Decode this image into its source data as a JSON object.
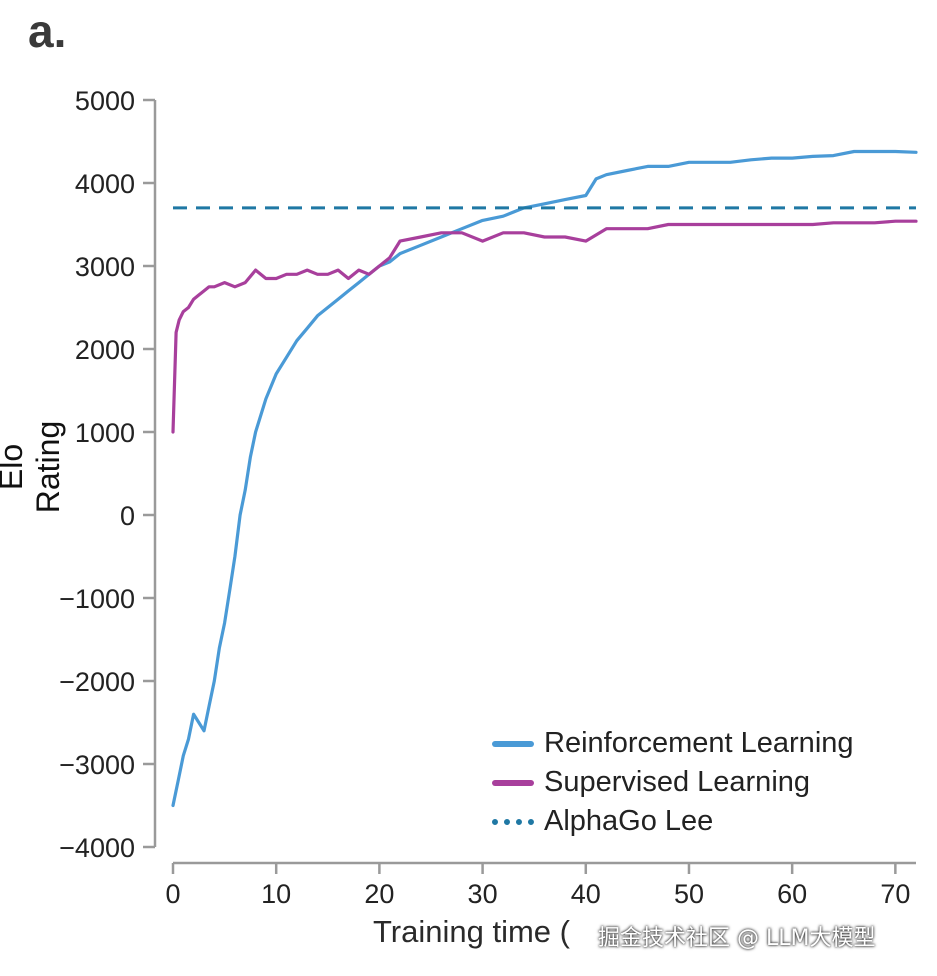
{
  "panel_label": "a.",
  "watermark": "掘金技术社区 @ LLM大模型",
  "chart_data": {
    "type": "line",
    "title": "",
    "xlabel": "Training time (hours)",
    "xlabel_visible": "Training time (",
    "ylabel": "Elo Rating",
    "xlim": [
      0,
      72
    ],
    "ylim": [
      -4000,
      5000
    ],
    "x_ticks": [
      0,
      10,
      20,
      30,
      40,
      50,
      60,
      70
    ],
    "y_ticks": [
      -4000,
      -3000,
      -2000,
      -1000,
      0,
      1000,
      2000,
      3000,
      4000,
      5000
    ],
    "y_tick_labels": [
      "−4000",
      "−3000",
      "−2000",
      "−1000",
      "0",
      "1000",
      "2000",
      "3000",
      "4000",
      "5000"
    ],
    "legend_position": "bottom-right",
    "series": [
      {
        "name": "Reinforcement Learning",
        "color": "#4a9ad6",
        "style": "solid",
        "x": [
          0,
          0.5,
          1,
          1.5,
          2,
          2.5,
          3,
          3.5,
          4,
          4.5,
          5,
          5.5,
          6,
          6.5,
          7,
          7.5,
          8,
          9,
          10,
          11,
          12,
          13,
          14,
          15,
          16,
          17,
          18,
          19,
          20,
          21,
          22,
          24,
          26,
          28,
          30,
          32,
          34,
          36,
          38,
          40,
          41,
          42,
          44,
          46,
          48,
          50,
          52,
          54,
          56,
          58,
          60,
          62,
          64,
          66,
          68,
          70,
          72
        ],
        "y": [
          -3500,
          -3200,
          -2900,
          -2700,
          -2400,
          -2500,
          -2600,
          -2300,
          -2000,
          -1600,
          -1300,
          -900,
          -500,
          0,
          300,
          700,
          1000,
          1400,
          1700,
          1900,
          2100,
          2250,
          2400,
          2500,
          2600,
          2700,
          2800,
          2900,
          3000,
          3050,
          3150,
          3250,
          3350,
          3450,
          3550,
          3600,
          3700,
          3750,
          3800,
          3850,
          4050,
          4100,
          4150,
          4200,
          4200,
          4250,
          4250,
          4250,
          4280,
          4300,
          4300,
          4320,
          4330,
          4380,
          4380,
          4380,
          4370
        ]
      },
      {
        "name": "Supervised Learning",
        "color": "#a83f9c",
        "style": "solid",
        "x": [
          0,
          0.3,
          0.6,
          1,
          1.5,
          2,
          2.5,
          3,
          3.5,
          4,
          5,
          6,
          7,
          8,
          9,
          10,
          11,
          12,
          13,
          14,
          15,
          16,
          17,
          18,
          19,
          20,
          21,
          22,
          24,
          26,
          28,
          30,
          32,
          34,
          36,
          38,
          40,
          42,
          44,
          46,
          48,
          50,
          52,
          54,
          56,
          58,
          60,
          62,
          64,
          66,
          68,
          70,
          72
        ],
        "y": [
          1000,
          2200,
          2350,
          2450,
          2500,
          2600,
          2650,
          2700,
          2750,
          2750,
          2800,
          2750,
          2800,
          2950,
          2850,
          2850,
          2900,
          2900,
          2950,
          2900,
          2900,
          2950,
          2850,
          2950,
          2900,
          3000,
          3100,
          3300,
          3350,
          3400,
          3400,
          3300,
          3400,
          3400,
          3350,
          3350,
          3300,
          3450,
          3450,
          3450,
          3500,
          3500,
          3500,
          3500,
          3500,
          3500,
          3500,
          3500,
          3520,
          3520,
          3520,
          3540,
          3540
        ]
      },
      {
        "name": "AlphaGo Lee",
        "color": "#1f78a4",
        "style": "dashed",
        "x": [
          0,
          72
        ],
        "y": [
          3700,
          3700
        ]
      }
    ]
  }
}
